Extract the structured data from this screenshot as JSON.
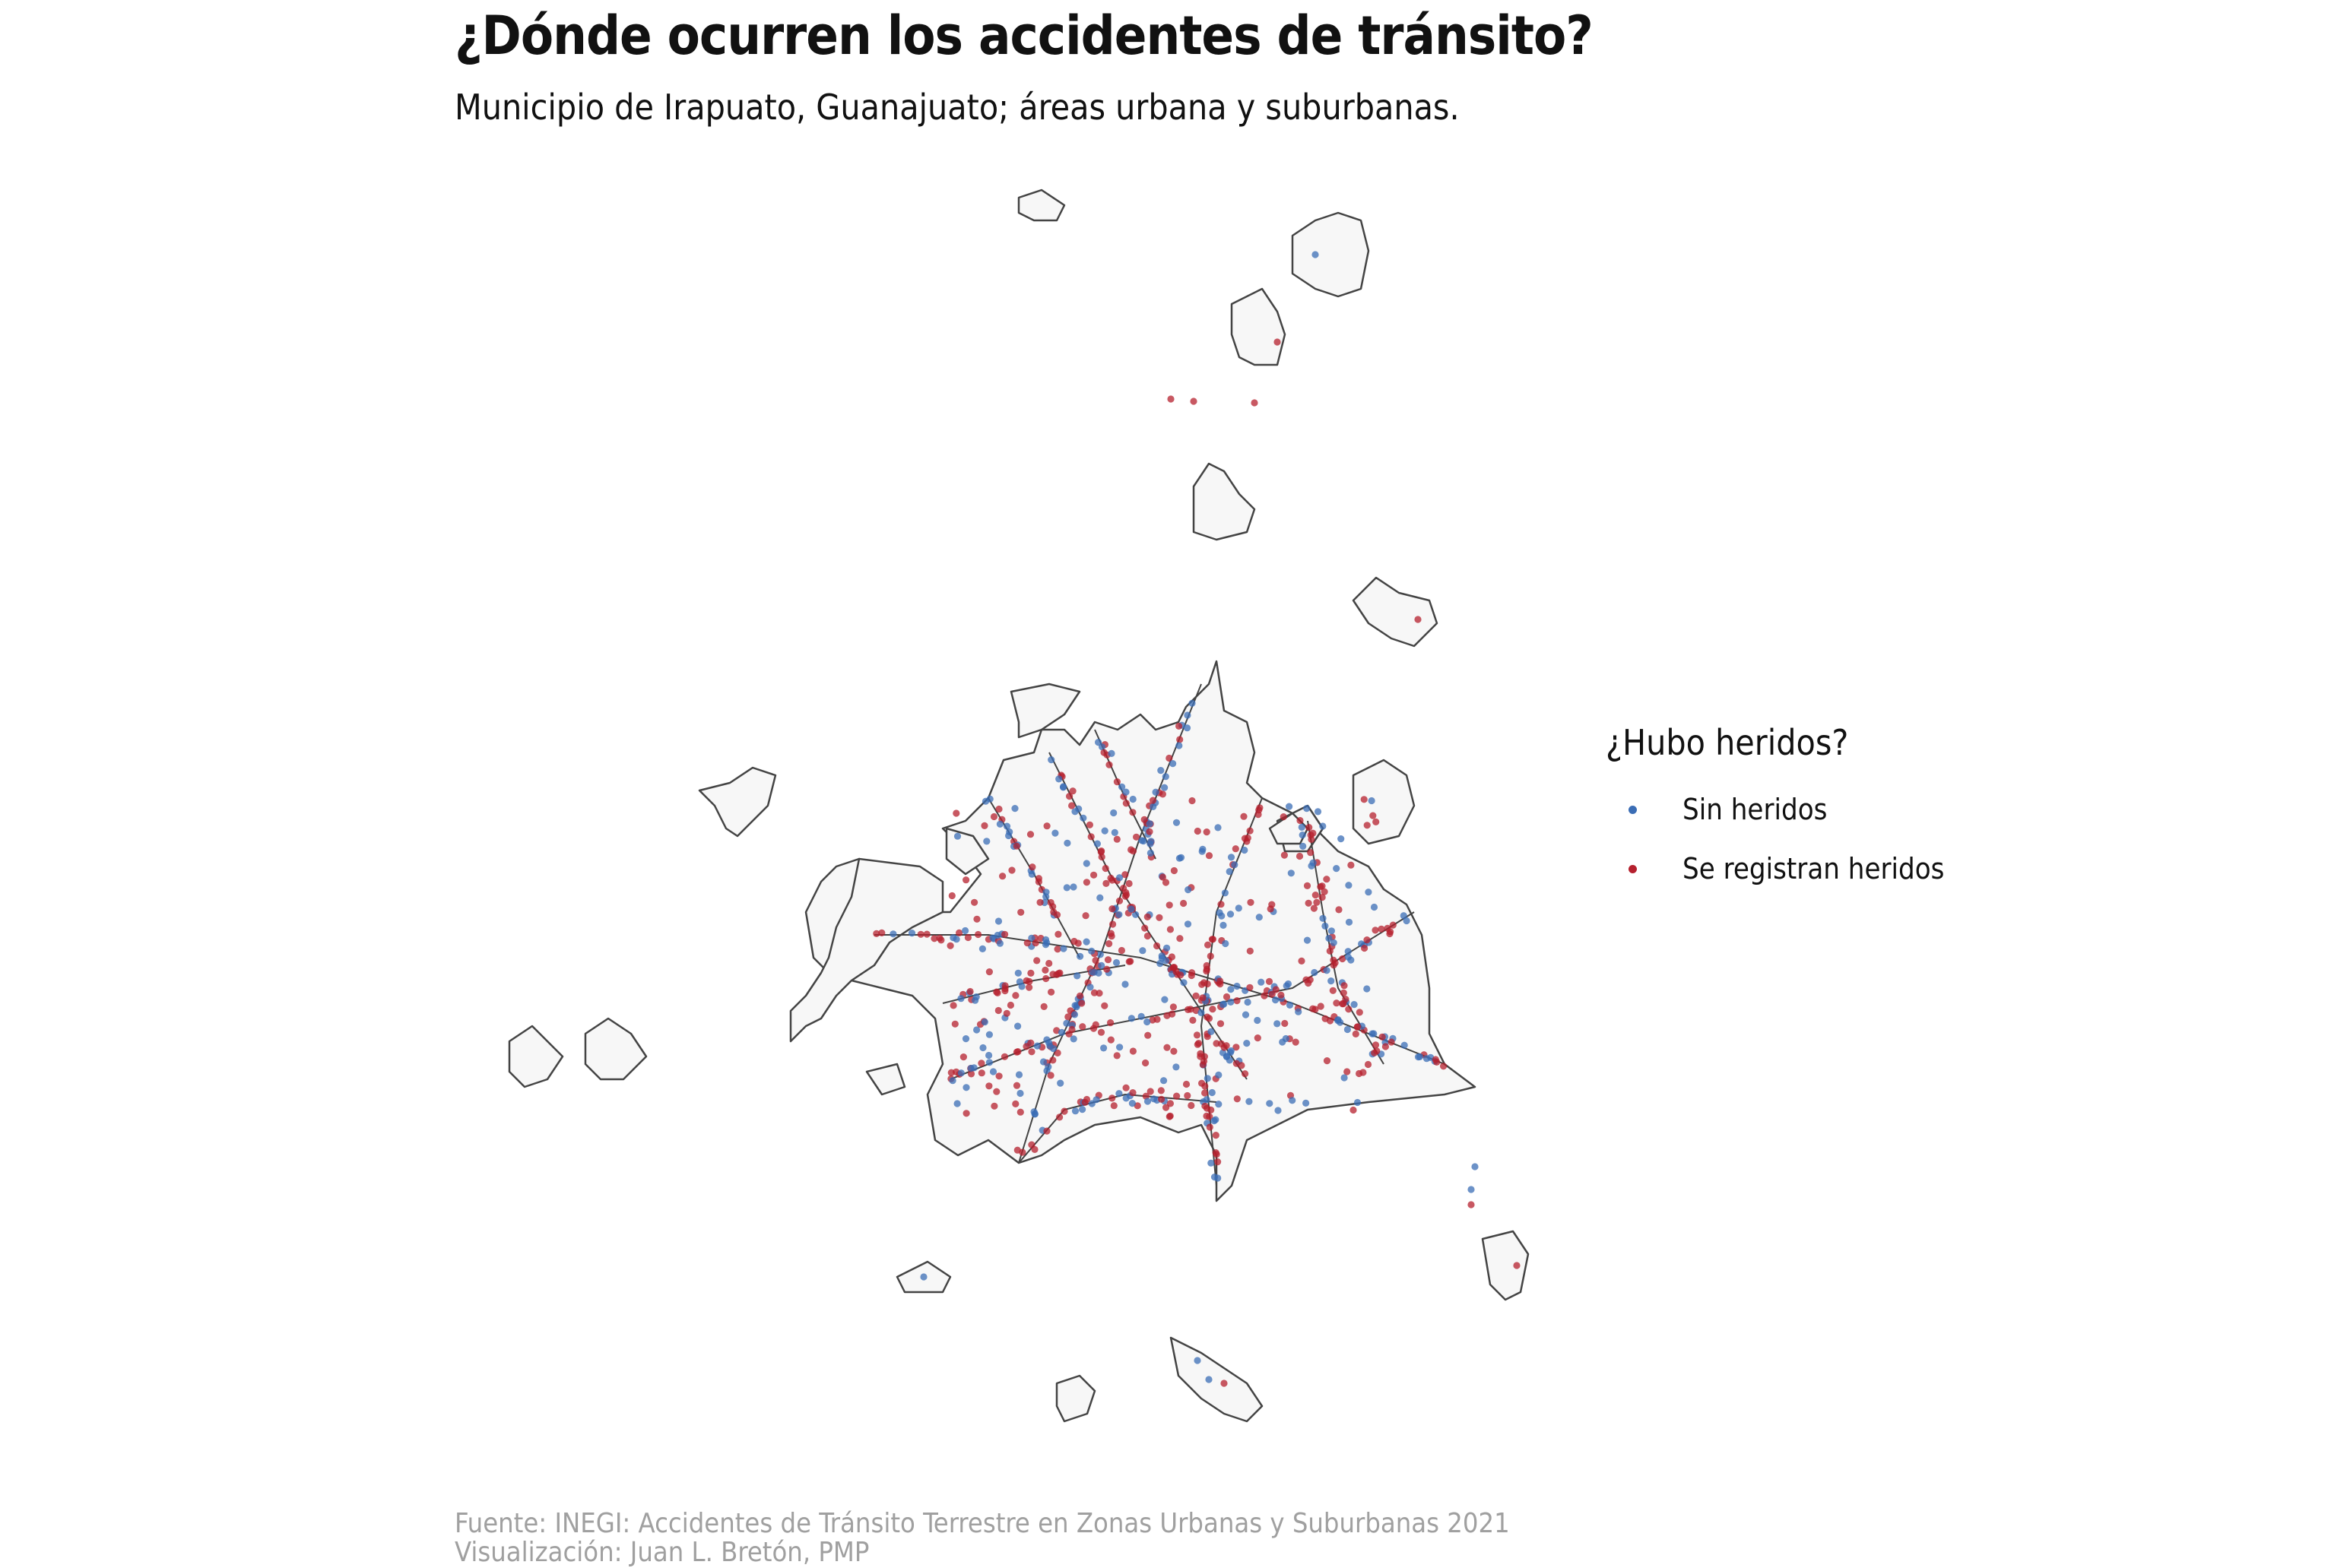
{
  "header": {
    "title": "¿Dónde ocurren los accidentes de tránsito?",
    "subtitle": "Municipio de Irapuato, Guanajuato; áreas urbana y suburbanas."
  },
  "legend": {
    "title": "¿Hubo heridos?",
    "items": [
      {
        "label": "Sin heridos",
        "color": "#3b6db5"
      },
      {
        "label": "Se registran heridos",
        "color": "#b5202e"
      }
    ]
  },
  "map_style": {
    "area_fill": "#f7f7f7",
    "area_stroke": "#444444",
    "sin_heridos_color": "#3b6db5",
    "se_registran_heridos_color": "#b5202e"
  },
  "footer": {
    "source": "Fuente: INEGI: Accidentes de Tránsito Terrestre en Zonas Urbanas y Suburbanas 2021",
    "credit": "Visualización: Juan L. Bretón, PMP"
  }
}
